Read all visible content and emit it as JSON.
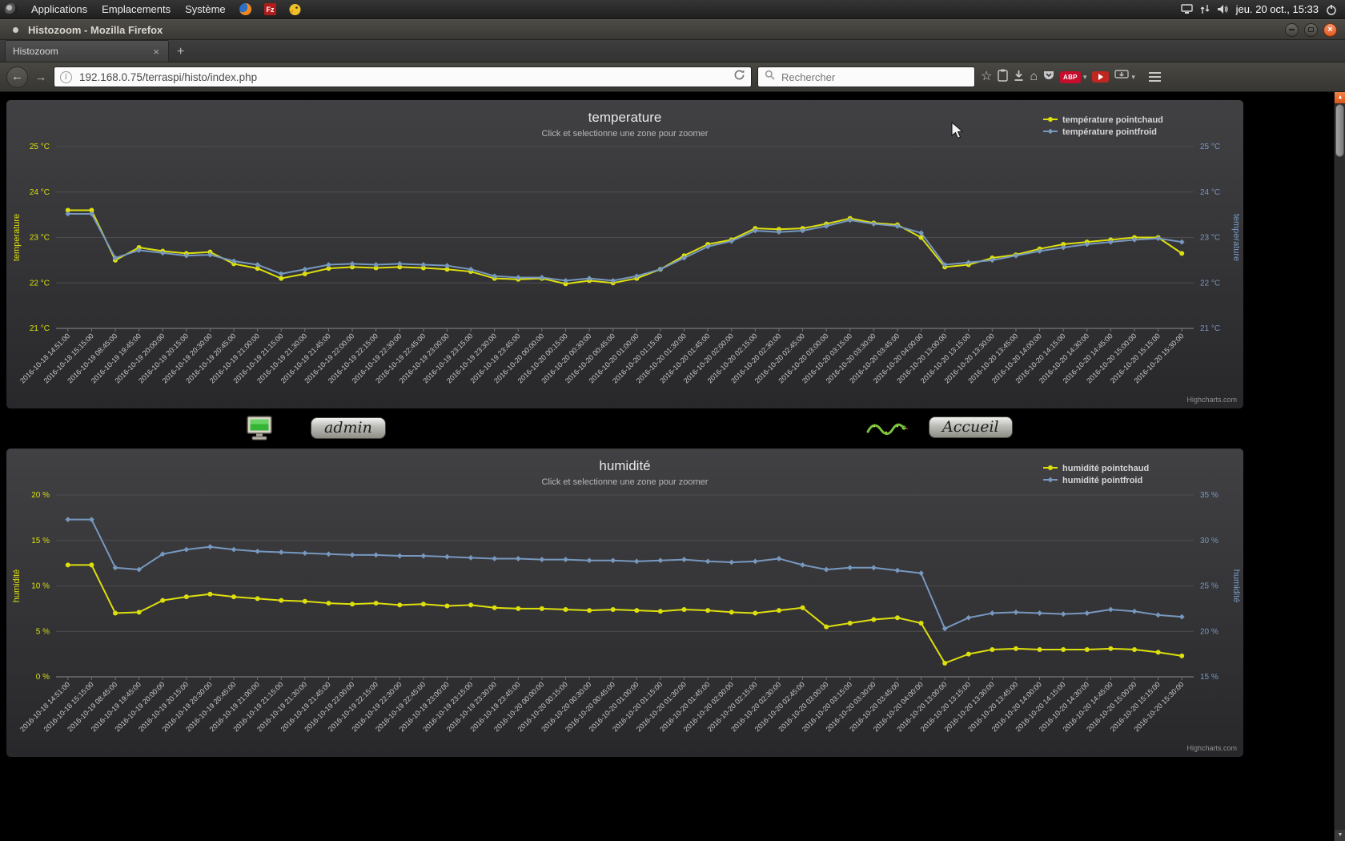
{
  "desktop_bar": {
    "menus": [
      "Applications",
      "Emplacements",
      "Système"
    ],
    "clock": "jeu. 20 oct., 15:33"
  },
  "titlebar": {
    "title": "Histozoom - Mozilla Firefox"
  },
  "tabbar": {
    "active_tab": "Histozoom"
  },
  "navbar": {
    "url": "192.168.0.75/terraspi/histo/index.php",
    "search_placeholder": "Rechercher",
    "adblock_label": "ABP"
  },
  "page": {
    "admin_label": "admin",
    "accueil_label": "Accueil"
  },
  "icons": {
    "back": "←",
    "forward": "→",
    "star": "☆",
    "home": "⌂",
    "caret": "▾",
    "close": "×",
    "new_tab": "+",
    "arrow_up": "▲",
    "arrow_down": "▼",
    "info": "i"
  },
  "colors": {
    "series_yellow": "#DDDF0D",
    "series_blue": "#7798BF"
  },
  "chart_data": [
    {
      "type": "line",
      "title": "temperature",
      "subtitle": "Click et selectionne une zone pour zoomer",
      "credit": "Highcharts.com",
      "legend_position": "top-right",
      "grid": true,
      "left_axis": {
        "title": "temperature",
        "min": 21,
        "max": 25,
        "step": 1,
        "unit": "°C",
        "color": "#DDDF0D"
      },
      "right_axis": {
        "title": "temperature",
        "min": 21,
        "max": 25,
        "step": 1,
        "unit": "°C",
        "color": "#7798BF"
      },
      "categories": [
        "2016-10-18 14:51:00",
        "2016-10-18 15:15:00",
        "2016-10-19 08:45:00",
        "2016-10-19 19:45:00",
        "2016-10-19 20:00:00",
        "2016-10-19 20:15:00",
        "2016-10-19 20:30:00",
        "2016-10-19 20:45:00",
        "2016-10-19 21:00:00",
        "2016-10-19 21:15:00",
        "2016-10-19 21:30:00",
        "2016-10-19 21:45:00",
        "2016-10-19 22:00:00",
        "2016-10-19 22:15:00",
        "2016-10-19 22:30:00",
        "2016-10-19 22:45:00",
        "2016-10-19 23:00:00",
        "2016-10-19 23:15:00",
        "2016-10-19 23:30:00",
        "2016-10-19 23:45:00",
        "2016-10-20 00:00:00",
        "2016-10-20 00:15:00",
        "2016-10-20 00:30:00",
        "2016-10-20 00:45:00",
        "2016-10-20 01:00:00",
        "2016-10-20 01:15:00",
        "2016-10-20 01:30:00",
        "2016-10-20 01:45:00",
        "2016-10-20 02:00:00",
        "2016-10-20 02:15:00",
        "2016-10-20 02:30:00",
        "2016-10-20 02:45:00",
        "2016-10-20 03:00:00",
        "2016-10-20 03:15:00",
        "2016-10-20 03:30:00",
        "2016-10-20 03:45:00",
        "2016-10-20 04:00:00",
        "2016-10-20 13:00:00",
        "2016-10-20 13:15:00",
        "2016-10-20 13:30:00",
        "2016-10-20 13:45:00",
        "2016-10-20 14:00:00",
        "2016-10-20 14:15:00",
        "2016-10-20 14:30:00",
        "2016-10-20 14:45:00",
        "2016-10-20 15:00:00",
        "2016-10-20 15:15:00",
        "2016-10-20 15:30:00"
      ],
      "series": [
        {
          "name": "température pointchaud",
          "color": "#DDDF0D",
          "axis": "left",
          "marker": "circle",
          "values": [
            23.6,
            23.6,
            22.5,
            22.78,
            22.7,
            22.65,
            22.68,
            22.42,
            22.32,
            22.1,
            22.2,
            22.32,
            22.35,
            22.33,
            22.35,
            22.33,
            22.3,
            22.25,
            22.1,
            22.08,
            22.1,
            21.98,
            22.05,
            22.0,
            22.1,
            22.3,
            22.6,
            22.85,
            22.95,
            23.2,
            23.18,
            23.2,
            23.3,
            23.42,
            23.32,
            23.28,
            23.0,
            22.35,
            22.4,
            22.55,
            22.62,
            22.75,
            22.85,
            22.9,
            22.95,
            23.0,
            23.0,
            22.65
          ]
        },
        {
          "name": "température pointfroid",
          "color": "#7798BF",
          "axis": "right",
          "marker": "diamond",
          "values": [
            23.52,
            23.52,
            22.55,
            22.72,
            22.66,
            22.6,
            22.62,
            22.48,
            22.4,
            22.2,
            22.3,
            22.4,
            22.42,
            22.4,
            22.42,
            22.4,
            22.38,
            22.3,
            22.15,
            22.12,
            22.12,
            22.05,
            22.1,
            22.05,
            22.15,
            22.3,
            22.55,
            22.8,
            22.92,
            23.15,
            23.12,
            23.15,
            23.25,
            23.38,
            23.3,
            23.25,
            23.1,
            22.4,
            22.45,
            22.5,
            22.6,
            22.7,
            22.78,
            22.85,
            22.9,
            22.95,
            22.98,
            22.9
          ]
        }
      ]
    },
    {
      "type": "line",
      "title": "humidité",
      "subtitle": "Click et selectionne une zone pour zoomer",
      "credit": "Highcharts.com",
      "legend_position": "top-right",
      "grid": true,
      "left_axis": {
        "title": "humidité",
        "min": 0,
        "max": 20,
        "step": 5,
        "unit": "%",
        "color": "#DDDF0D"
      },
      "right_axis": {
        "title": "humidité",
        "min": 15,
        "max": 35,
        "step": 5,
        "unit": "%",
        "color": "#7798BF"
      },
      "categories": [
        "2016-10-18 14:51:00",
        "2016-10-18 15:15:00",
        "2016-10-19 08:45:00",
        "2016-10-19 19:45:00",
        "2016-10-19 20:00:00",
        "2016-10-19 20:15:00",
        "2016-10-19 20:30:00",
        "2016-10-19 20:45:00",
        "2016-10-19 21:00:00",
        "2016-10-19 21:15:00",
        "2016-10-19 21:30:00",
        "2016-10-19 21:45:00",
        "2016-10-19 22:00:00",
        "2016-10-19 22:15:00",
        "2016-10-19 22:30:00",
        "2016-10-19 22:45:00",
        "2016-10-19 23:00:00",
        "2016-10-19 23:15:00",
        "2016-10-19 23:30:00",
        "2016-10-19 23:45:00",
        "2016-10-20 00:00:00",
        "2016-10-20 00:15:00",
        "2016-10-20 00:30:00",
        "2016-10-20 00:45:00",
        "2016-10-20 01:00:00",
        "2016-10-20 01:15:00",
        "2016-10-20 01:30:00",
        "2016-10-20 01:45:00",
        "2016-10-20 02:00:00",
        "2016-10-20 02:15:00",
        "2016-10-20 02:30:00",
        "2016-10-20 02:45:00",
        "2016-10-20 03:00:00",
        "2016-10-20 03:15:00",
        "2016-10-20 03:30:00",
        "2016-10-20 03:45:00",
        "2016-10-20 04:00:00",
        "2016-10-20 13:00:00",
        "2016-10-20 13:15:00",
        "2016-10-20 13:30:00",
        "2016-10-20 13:45:00",
        "2016-10-20 14:00:00",
        "2016-10-20 14:15:00",
        "2016-10-20 14:30:00",
        "2016-10-20 14:45:00",
        "2016-10-20 15:00:00",
        "2016-10-20 15:15:00",
        "2016-10-20 15:30:00"
      ],
      "series": [
        {
          "name": "humidité pointchaud",
          "color": "#DDDF0D",
          "axis": "left",
          "marker": "circle",
          "values": [
            12.3,
            12.3,
            7.0,
            7.1,
            8.4,
            8.8,
            9.1,
            8.8,
            8.6,
            8.4,
            8.3,
            8.1,
            8.0,
            8.1,
            7.9,
            8.0,
            7.8,
            7.9,
            7.6,
            7.5,
            7.5,
            7.4,
            7.3,
            7.4,
            7.3,
            7.2,
            7.4,
            7.3,
            7.1,
            7.0,
            7.3,
            7.6,
            5.5,
            5.9,
            6.3,
            6.5,
            5.9,
            1.5,
            2.5,
            3.0,
            3.1,
            3.0,
            3.0,
            3.0,
            3.1,
            3.0,
            2.7,
            2.3
          ]
        },
        {
          "name": "humidité pointfroid",
          "color": "#7798BF",
          "axis": "right",
          "marker": "diamond",
          "values": [
            32.3,
            32.3,
            27.0,
            26.8,
            28.5,
            29.0,
            29.3,
            29.0,
            28.8,
            28.7,
            28.6,
            28.5,
            28.4,
            28.4,
            28.3,
            28.3,
            28.2,
            28.1,
            28.0,
            28.0,
            27.9,
            27.9,
            27.8,
            27.8,
            27.7,
            27.8,
            27.9,
            27.7,
            27.6,
            27.7,
            28.0,
            27.3,
            26.8,
            27.0,
            27.0,
            26.7,
            26.4,
            20.3,
            21.5,
            22.0,
            22.1,
            22.0,
            21.9,
            22.0,
            22.4,
            22.2,
            21.8,
            21.6
          ]
        }
      ]
    }
  ]
}
